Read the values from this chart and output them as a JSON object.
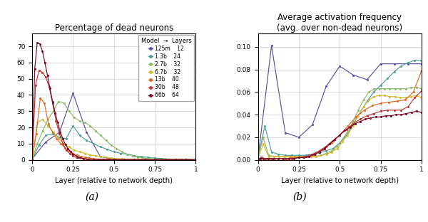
{
  "models": [
    "125m",
    "1.3b",
    "2.7b",
    "6.7b",
    "13b",
    "30b",
    "66b"
  ],
  "layers": [
    12,
    24,
    32,
    32,
    40,
    48,
    64
  ],
  "colors": [
    "#5c4fa3",
    "#4e9e97",
    "#8fba6a",
    "#d4b830",
    "#d96b2a",
    "#bc3535",
    "#750828"
  ],
  "title_a": "Percentage of dead neurons",
  "title_b": "Average activation frequency\n(avg. over non-dead neurons)",
  "xlabel": "Layer (relative to network depth)",
  "label_a": "(a)",
  "label_b": "(b)",
  "dead_data": {
    "125m": {
      "x": [
        0.0,
        0.083,
        0.167,
        0.25,
        0.333,
        0.417,
        0.5,
        0.583,
        0.667,
        0.75,
        0.833,
        0.917,
        1.0
      ],
      "y": [
        0.5,
        11.0,
        17.0,
        41.0,
        17.0,
        2.0,
        0.5,
        0.2,
        0.1,
        0.1,
        0.1,
        0.1,
        0.1
      ]
    },
    "1.3b": {
      "x": [
        0.0,
        0.042,
        0.083,
        0.125,
        0.167,
        0.208,
        0.25,
        0.292,
        0.333,
        0.375,
        0.417,
        0.458,
        0.5,
        0.542,
        0.583,
        0.625,
        0.667,
        0.708,
        0.75,
        0.792,
        0.833,
        0.875,
        0.917,
        0.958,
        1.0
      ],
      "y": [
        0.2,
        9.0,
        15.0,
        16.0,
        14.0,
        13.0,
        21.0,
        15.0,
        12.0,
        10.0,
        8.0,
        6.5,
        5.0,
        4.0,
        3.5,
        2.5,
        2.0,
        1.5,
        1.0,
        0.8,
        0.5,
        0.3,
        0.2,
        0.1,
        0.1
      ]
    },
    "2.7b": {
      "x": [
        0.0,
        0.032,
        0.065,
        0.097,
        0.129,
        0.161,
        0.194,
        0.226,
        0.258,
        0.29,
        0.323,
        0.355,
        0.387,
        0.419,
        0.452,
        0.484,
        0.516,
        0.548,
        0.581,
        0.613,
        0.645,
        0.677,
        0.71,
        0.742,
        0.774,
        0.806,
        0.839,
        0.871,
        0.903,
        0.935,
        0.968,
        1.0
      ],
      "y": [
        0.2,
        10.0,
        18.0,
        25.0,
        30.0,
        36.0,
        35.0,
        30.0,
        26.0,
        24.0,
        23.0,
        21.0,
        18.0,
        15.0,
        12.0,
        9.0,
        7.0,
        5.0,
        3.5,
        2.5,
        1.8,
        1.2,
        0.8,
        0.5,
        0.3,
        0.2,
        0.1,
        0.1,
        0.1,
        0.1,
        0.1,
        0.1
      ]
    },
    "6.7b": {
      "x": [
        0.0,
        0.032,
        0.065,
        0.097,
        0.129,
        0.161,
        0.194,
        0.226,
        0.258,
        0.29,
        0.323,
        0.355,
        0.387,
        0.419,
        0.452,
        0.484,
        0.516,
        0.548,
        0.581,
        0.613,
        0.645,
        0.677,
        0.71,
        0.742,
        0.774,
        0.806,
        0.839,
        0.871,
        0.903,
        0.935,
        0.968,
        1.0
      ],
      "y": [
        0.2,
        23.0,
        25.0,
        21.0,
        17.0,
        13.0,
        10.0,
        8.0,
        6.0,
        5.0,
        4.0,
        3.0,
        2.5,
        2.0,
        1.5,
        1.0,
        0.8,
        0.6,
        0.4,
        0.3,
        0.2,
        0.2,
        0.1,
        0.1,
        0.1,
        0.1,
        0.1,
        0.1,
        0.1,
        0.1,
        0.1,
        0.1
      ]
    },
    "13b": {
      "x": [
        0.0,
        0.025,
        0.05,
        0.075,
        0.1,
        0.125,
        0.15,
        0.175,
        0.2,
        0.225,
        0.25,
        0.275,
        0.3,
        0.325,
        0.35,
        0.375,
        0.4,
        0.425,
        0.45,
        0.5,
        0.55,
        0.6,
        0.65,
        0.7,
        0.75,
        0.8,
        0.85,
        0.9,
        0.95,
        1.0
      ],
      "y": [
        0.3,
        16.0,
        38.0,
        35.0,
        22.0,
        17.0,
        13.0,
        10.0,
        7.5,
        5.5,
        4.0,
        3.0,
        2.0,
        1.5,
        1.0,
        0.8,
        0.5,
        0.3,
        0.2,
        0.1,
        0.1,
        0.1,
        0.1,
        0.1,
        0.1,
        0.1,
        0.1,
        0.1,
        0.1,
        0.1
      ]
    },
    "30b": {
      "x": [
        0.0,
        0.021,
        0.042,
        0.063,
        0.083,
        0.104,
        0.125,
        0.146,
        0.167,
        0.188,
        0.208,
        0.229,
        0.25,
        0.271,
        0.292,
        0.313,
        0.333,
        0.375,
        0.417,
        0.458,
        0.5,
        0.583,
        0.667,
        0.75,
        0.833,
        0.917,
        1.0
      ],
      "y": [
        0.3,
        46.0,
        55.0,
        54.0,
        51.0,
        45.0,
        35.0,
        24.0,
        16.0,
        10.0,
        6.0,
        4.0,
        2.5,
        1.5,
        1.0,
        0.6,
        0.4,
        0.2,
        0.1,
        0.1,
        0.1,
        0.1,
        0.1,
        0.1,
        0.1,
        0.1,
        0.1
      ]
    },
    "66b": {
      "x": [
        0.0,
        0.016,
        0.031,
        0.047,
        0.063,
        0.078,
        0.094,
        0.109,
        0.125,
        0.141,
        0.156,
        0.172,
        0.188,
        0.203,
        0.219,
        0.234,
        0.25,
        0.281,
        0.313,
        0.344,
        0.375,
        0.406,
        0.438,
        0.469,
        0.5,
        0.563,
        0.625,
        0.688,
        0.75,
        0.813,
        0.875,
        0.938,
        1.0
      ],
      "y": [
        0.3,
        56.0,
        72.0,
        71.5,
        67.0,
        60.0,
        52.0,
        44.0,
        36.0,
        29.0,
        23.0,
        17.0,
        13.0,
        9.5,
        7.0,
        5.0,
        3.5,
        1.8,
        0.8,
        0.4,
        0.2,
        0.1,
        0.1,
        0.1,
        0.1,
        0.1,
        0.1,
        0.1,
        0.1,
        0.1,
        0.1,
        0.1,
        0.1
      ]
    }
  },
  "freq_data": {
    "125m": {
      "x": [
        0.0,
        0.083,
        0.167,
        0.25,
        0.333,
        0.417,
        0.5,
        0.583,
        0.667,
        0.75,
        0.833,
        0.917,
        1.0
      ],
      "y": [
        0.001,
        0.101,
        0.024,
        0.02,
        0.031,
        0.065,
        0.083,
        0.075,
        0.071,
        0.085,
        0.085,
        0.085,
        0.085
      ]
    },
    "1.3b": {
      "x": [
        0.0,
        0.042,
        0.083,
        0.125,
        0.167,
        0.208,
        0.25,
        0.292,
        0.333,
        0.375,
        0.417,
        0.458,
        0.5,
        0.542,
        0.583,
        0.625,
        0.667,
        0.708,
        0.75,
        0.792,
        0.833,
        0.875,
        0.917,
        0.958,
        1.0
      ],
      "y": [
        0.001,
        0.03,
        0.007,
        0.005,
        0.004,
        0.004,
        0.004,
        0.004,
        0.005,
        0.006,
        0.008,
        0.01,
        0.015,
        0.022,
        0.032,
        0.042,
        0.052,
        0.06,
        0.066,
        0.072,
        0.078,
        0.083,
        0.086,
        0.088,
        0.088
      ]
    },
    "2.7b": {
      "x": [
        0.0,
        0.032,
        0.065,
        0.097,
        0.129,
        0.161,
        0.194,
        0.226,
        0.258,
        0.29,
        0.323,
        0.355,
        0.387,
        0.419,
        0.452,
        0.484,
        0.516,
        0.548,
        0.581,
        0.613,
        0.645,
        0.677,
        0.71,
        0.742,
        0.774,
        0.806,
        0.839,
        0.871,
        0.903,
        0.935,
        0.968,
        1.0
      ],
      "y": [
        0.001,
        0.02,
        0.004,
        0.003,
        0.003,
        0.003,
        0.003,
        0.003,
        0.003,
        0.003,
        0.003,
        0.003,
        0.004,
        0.006,
        0.008,
        0.012,
        0.018,
        0.025,
        0.034,
        0.044,
        0.053,
        0.06,
        0.063,
        0.063,
        0.063,
        0.063,
        0.063,
        0.063,
        0.063,
        0.064,
        0.064,
        0.063
      ]
    },
    "6.7b": {
      "x": [
        0.0,
        0.032,
        0.065,
        0.097,
        0.129,
        0.161,
        0.194,
        0.226,
        0.258,
        0.29,
        0.323,
        0.355,
        0.387,
        0.419,
        0.452,
        0.484,
        0.516,
        0.548,
        0.581,
        0.613,
        0.645,
        0.677,
        0.71,
        0.742,
        0.774,
        0.806,
        0.839,
        0.871,
        0.903,
        0.935,
        0.968,
        1.0
      ],
      "y": [
        0.001,
        0.014,
        0.003,
        0.003,
        0.003,
        0.003,
        0.003,
        0.003,
        0.003,
        0.003,
        0.003,
        0.003,
        0.004,
        0.005,
        0.007,
        0.01,
        0.016,
        0.022,
        0.03,
        0.039,
        0.047,
        0.053,
        0.056,
        0.057,
        0.057,
        0.056,
        0.056,
        0.055,
        0.055,
        0.056,
        0.057,
        0.055
      ]
    },
    "13b": {
      "x": [
        0.0,
        0.025,
        0.05,
        0.075,
        0.1,
        0.125,
        0.15,
        0.175,
        0.2,
        0.225,
        0.25,
        0.275,
        0.3,
        0.325,
        0.35,
        0.375,
        0.4,
        0.45,
        0.5,
        0.55,
        0.6,
        0.65,
        0.7,
        0.75,
        0.8,
        0.85,
        0.9,
        0.95,
        1.0
      ],
      "y": [
        0.001,
        0.002,
        0.001,
        0.001,
        0.001,
        0.001,
        0.001,
        0.001,
        0.002,
        0.002,
        0.002,
        0.002,
        0.003,
        0.004,
        0.005,
        0.007,
        0.009,
        0.015,
        0.022,
        0.03,
        0.038,
        0.044,
        0.048,
        0.05,
        0.051,
        0.052,
        0.053,
        0.06,
        0.079
      ]
    },
    "30b": {
      "x": [
        0.0,
        0.021,
        0.042,
        0.063,
        0.083,
        0.125,
        0.167,
        0.208,
        0.25,
        0.292,
        0.333,
        0.375,
        0.417,
        0.458,
        0.5,
        0.542,
        0.583,
        0.625,
        0.667,
        0.708,
        0.75,
        0.792,
        0.833,
        0.875,
        0.917,
        0.958,
        1.0
      ],
      "y": [
        0.001,
        0.002,
        0.001,
        0.001,
        0.001,
        0.001,
        0.001,
        0.001,
        0.002,
        0.003,
        0.005,
        0.008,
        0.012,
        0.017,
        0.022,
        0.027,
        0.032,
        0.036,
        0.039,
        0.041,
        0.043,
        0.044,
        0.044,
        0.044,
        0.047,
        0.055,
        0.061
      ]
    },
    "66b": {
      "x": [
        0.0,
        0.016,
        0.031,
        0.063,
        0.094,
        0.125,
        0.156,
        0.188,
        0.219,
        0.25,
        0.281,
        0.313,
        0.344,
        0.375,
        0.406,
        0.438,
        0.469,
        0.5,
        0.531,
        0.563,
        0.594,
        0.625,
        0.656,
        0.688,
        0.719,
        0.75,
        0.781,
        0.813,
        0.844,
        0.875,
        0.906,
        0.938,
        0.969,
        1.0
      ],
      "y": [
        0.001,
        0.001,
        0.001,
        0.001,
        0.001,
        0.001,
        0.001,
        0.001,
        0.001,
        0.002,
        0.002,
        0.003,
        0.005,
        0.007,
        0.01,
        0.014,
        0.018,
        0.022,
        0.026,
        0.029,
        0.032,
        0.034,
        0.036,
        0.037,
        0.038,
        0.038,
        0.039,
        0.039,
        0.04,
        0.04,
        0.041,
        0.042,
        0.043,
        0.042
      ]
    }
  }
}
